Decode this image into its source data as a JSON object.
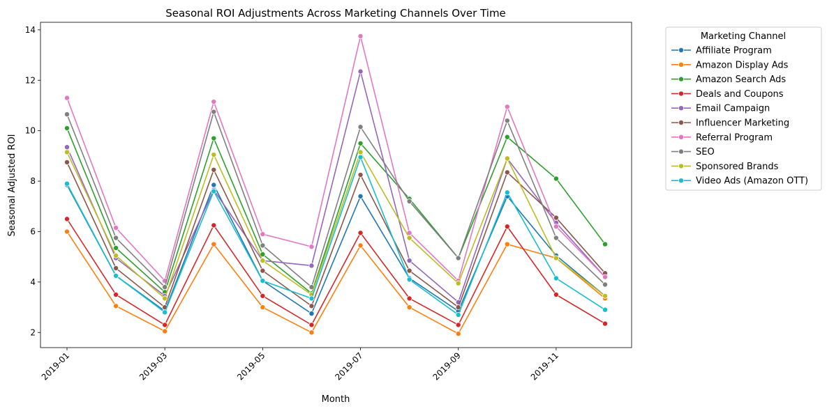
{
  "chart_data": {
    "type": "line",
    "title": "Seasonal ROI Adjustments Across Marketing Channels Over Time",
    "xlabel": "Month",
    "ylabel": "Seasonal Adjusted ROI",
    "x": [
      "2019-01",
      "2019-02",
      "2019-03",
      "2019-04",
      "2019-05",
      "2019-06",
      "2019-07",
      "2019-08",
      "2019-09",
      "2019-10",
      "2019-11",
      "2019-12"
    ],
    "x_tick_labels": [
      "2019-01",
      "2019-03",
      "2019-05",
      "2019-07",
      "2019-09",
      "2019-11"
    ],
    "ylim": [
      1.4,
      14.3
    ],
    "y_ticks": [
      2,
      4,
      6,
      8,
      10,
      12,
      14
    ],
    "grid": false,
    "legend": {
      "title": "Marketing Channel",
      "placement": "outside-right"
    },
    "series": [
      {
        "name": "Affiliate Program",
        "color": "#1f77b4",
        "values": [
          7.85,
          4.25,
          2.85,
          7.85,
          4.05,
          2.75,
          7.4,
          4.15,
          2.85,
          7.4,
          5.05,
          3.45
        ]
      },
      {
        "name": "Amazon Display Ads",
        "color": "#ff7f0e",
        "values": [
          6.0,
          3.05,
          2.05,
          5.5,
          3.0,
          2.0,
          5.45,
          3.0,
          1.95,
          5.5,
          4.95,
          3.35
        ]
      },
      {
        "name": "Amazon Search Ads",
        "color": "#2ca02c",
        "values": [
          10.1,
          5.35,
          3.6,
          9.7,
          5.1,
          3.55,
          9.5,
          7.3,
          4.95,
          9.75,
          8.1,
          5.5
        ]
      },
      {
        "name": "Deals and Coupons",
        "color": "#d62728",
        "values": [
          6.5,
          3.5,
          2.3,
          6.25,
          3.45,
          2.3,
          5.95,
          3.35,
          2.3,
          6.2,
          3.5,
          2.35
        ]
      },
      {
        "name": "Email Campaign",
        "color": "#9467bd",
        "values": [
          9.35,
          4.95,
          3.45,
          7.65,
          4.85,
          4.65,
          12.35,
          4.85,
          3.2,
          8.9,
          6.35,
          4.2
        ]
      },
      {
        "name": "Influencer Marketing",
        "color": "#8c564b",
        "values": [
          8.75,
          4.55,
          3.0,
          8.45,
          4.45,
          3.05,
          8.25,
          4.45,
          3.0,
          8.35,
          6.55,
          4.35
        ]
      },
      {
        "name": "Referral Program",
        "color": "#e377c2",
        "values": [
          11.3,
          6.15,
          4.05,
          11.15,
          5.9,
          5.4,
          13.75,
          5.95,
          4.05,
          10.95,
          6.2,
          4.2
        ]
      },
      {
        "name": "SEO",
        "color": "#7f7f7f",
        "values": [
          10.65,
          5.75,
          3.8,
          10.75,
          5.45,
          3.8,
          10.15,
          7.2,
          4.95,
          10.4,
          5.75,
          3.9
        ]
      },
      {
        "name": "Sponsored Brands",
        "color": "#bcbd22",
        "values": [
          9.15,
          5.05,
          3.35,
          9.05,
          4.85,
          3.5,
          9.15,
          5.75,
          3.95,
          8.9,
          4.95,
          3.45
        ]
      },
      {
        "name": "Video Ads (Amazon OTT)",
        "color": "#17becf",
        "values": [
          7.9,
          4.25,
          2.8,
          7.6,
          4.05,
          3.35,
          8.95,
          4.1,
          2.7,
          7.55,
          4.15,
          2.9
        ]
      }
    ]
  }
}
